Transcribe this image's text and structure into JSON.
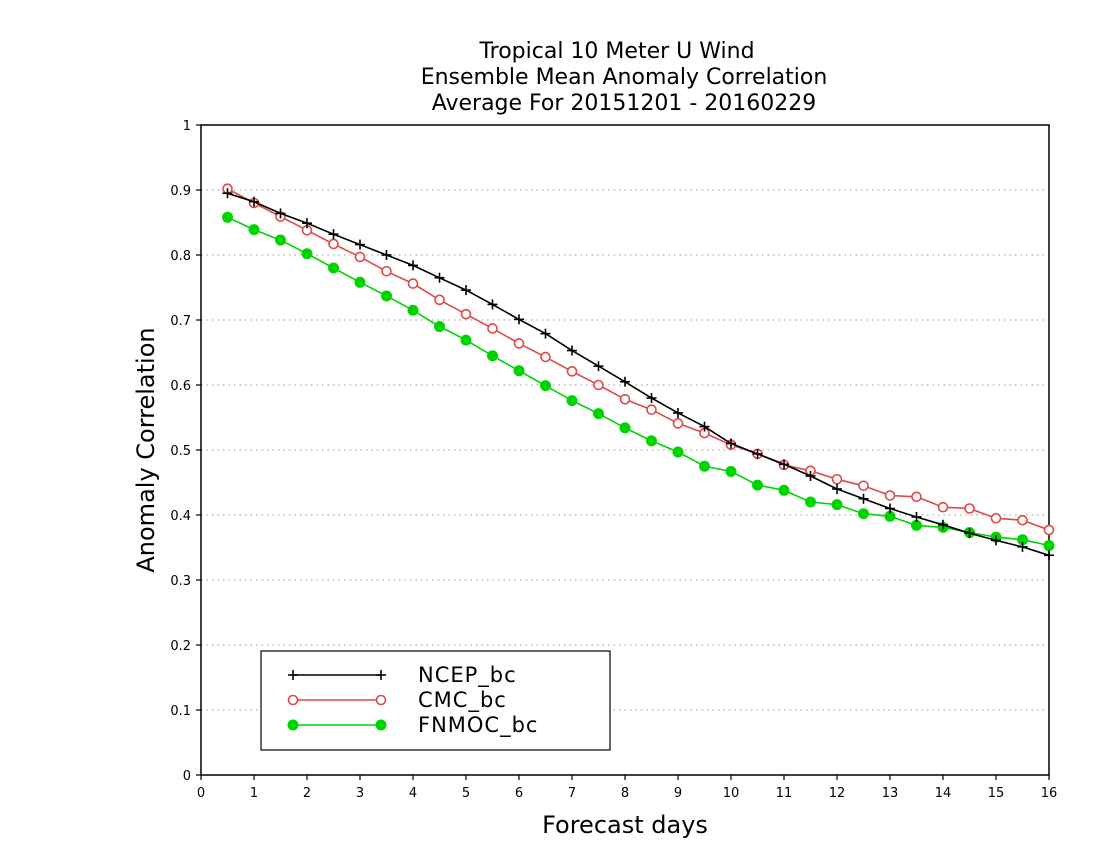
{
  "chart_data": {
    "type": "line",
    "title_lines": [
      "Tropical 10 Meter U Wind",
      "Ensemble Mean Anomaly Correlation",
      "Average For 20151201 - 20160229"
    ],
    "xlabel": "Forecast days",
    "ylabel": "Anomaly Correlation",
    "xlim": [
      0,
      16
    ],
    "ylim": [
      0,
      1
    ],
    "x_ticks": [
      "0",
      "1",
      "2",
      "3",
      "4",
      "5",
      "6",
      "7",
      "8",
      "9",
      "10",
      "11",
      "12",
      "13",
      "14",
      "15",
      "16"
    ],
    "y_ticks": [
      "0",
      "0.1",
      "0.2",
      "0.3",
      "0.4",
      "0.5",
      "0.6",
      "0.7",
      "0.8",
      "0.9",
      "1"
    ],
    "grid": "horizontal dotted",
    "legend_position": "bottom-left",
    "x": [
      0.5,
      1,
      1.5,
      2,
      2.5,
      3,
      3.5,
      4,
      4.5,
      5,
      5.5,
      6,
      6.5,
      7,
      7.5,
      8,
      8.5,
      9,
      9.5,
      10,
      10.5,
      11,
      11.5,
      12,
      12.5,
      13,
      13.5,
      14,
      14.5,
      15,
      15.5,
      16
    ],
    "series": [
      {
        "name": "NCEP_bc",
        "color": "#000000",
        "marker": "plus",
        "values": [
          0.895,
          0.882,
          0.864,
          0.849,
          0.832,
          0.816,
          0.8,
          0.784,
          0.765,
          0.746,
          0.724,
          0.701,
          0.679,
          0.653,
          0.629,
          0.605,
          0.58,
          0.557,
          0.536,
          0.51,
          0.494,
          0.478,
          0.46,
          0.44,
          0.425,
          0.41,
          0.397,
          0.385,
          0.372,
          0.361,
          0.351,
          0.338
        ]
      },
      {
        "name": "CMC_bc",
        "color": "#e04848",
        "marker": "open-circle",
        "values": [
          0.902,
          0.88,
          0.859,
          0.838,
          0.817,
          0.797,
          0.775,
          0.756,
          0.731,
          0.709,
          0.687,
          0.664,
          0.643,
          0.621,
          0.6,
          0.578,
          0.562,
          0.541,
          0.526,
          0.508,
          0.494,
          0.477,
          0.468,
          0.455,
          0.445,
          0.43,
          0.428,
          0.412,
          0.41,
          0.395,
          0.392,
          0.377
        ]
      },
      {
        "name": "FNMOC_bc",
        "color": "#00d400",
        "marker": "filled-circle",
        "values": [
          0.858,
          0.839,
          0.823,
          0.802,
          0.78,
          0.758,
          0.737,
          0.715,
          0.69,
          0.669,
          0.645,
          0.622,
          0.599,
          0.576,
          0.556,
          0.534,
          0.514,
          0.497,
          0.475,
          0.467,
          0.446,
          0.438,
          0.42,
          0.416,
          0.402,
          0.398,
          0.384,
          0.381,
          0.373,
          0.366,
          0.362,
          0.353
        ]
      }
    ]
  }
}
